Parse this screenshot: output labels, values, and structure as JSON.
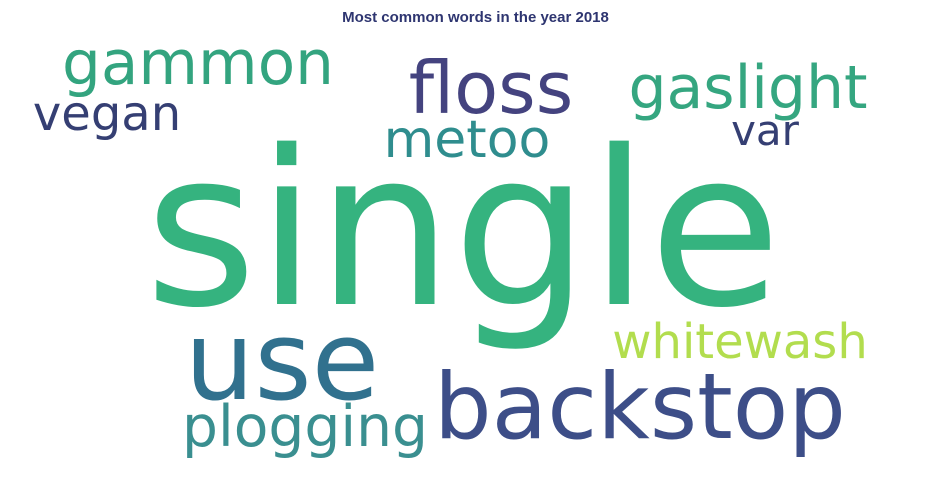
{
  "title": "Most common words in the year 2018",
  "colors": {
    "background": "#ffffff",
    "title": "#2e3570"
  },
  "words": [
    {
      "id": "single",
      "text": "single",
      "color": "#35b37f"
    },
    {
      "id": "use",
      "text": "use",
      "color": "#31718e"
    },
    {
      "id": "backstop",
      "text": "backstop",
      "color": "#3d4e88"
    },
    {
      "id": "floss",
      "text": "floss",
      "color": "#44437f"
    },
    {
      "id": "gammon",
      "text": "gammon",
      "color": "#33a47f"
    },
    {
      "id": "gaslight",
      "text": "gaslight",
      "color": "#35a680"
    },
    {
      "id": "whitewash",
      "text": "whitewash",
      "color": "#b2dd4e"
    },
    {
      "id": "plogging",
      "text": "plogging",
      "color": "#3a8f90"
    },
    {
      "id": "metoo",
      "text": "metoo",
      "color": "#2f8d8e"
    },
    {
      "id": "vegan",
      "text": "vegan",
      "color": "#353f73"
    },
    {
      "id": "var",
      "text": "var",
      "color": "#353f73"
    }
  ]
}
